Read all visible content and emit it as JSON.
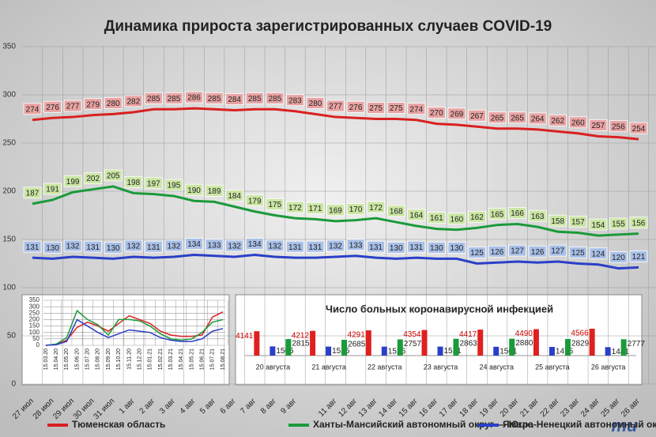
{
  "chart_data": [
    {
      "type": "line",
      "title": "Динамика прироста зарегистрированных случаев COVID-19",
      "categories": [
        "27 июл",
        "28 июл",
        "29 июл",
        "30 июл",
        "31 июл",
        "1 авг",
        "2 авг",
        "3 авг",
        "4 авг",
        "5 авг",
        "6 авг",
        "7 авг",
        "8 авг",
        "9 авг",
        null,
        "11 авг",
        "12 авг",
        "13 авг",
        "14 авг",
        "15 авг",
        "16 авг",
        "17 авг",
        "18 авг",
        "19 авг",
        "20 авг",
        "21 авг",
        "22 авг",
        "23 авг",
        "24 авг",
        "25 авг",
        "26 авг"
      ],
      "series": [
        {
          "name": "Тюменская область",
          "color": "#d92020",
          "label_color": "#e9a3a3",
          "values": [
            274,
            276,
            277,
            279,
            280,
            282,
            285,
            285,
            286,
            285,
            284,
            285,
            285,
            283,
            280,
            277,
            276,
            275,
            275,
            274,
            270,
            269,
            267,
            265,
            265,
            264,
            262,
            260,
            257,
            256,
            254
          ]
        },
        {
          "name": "Ханты-Мансийский автономный округ — Югра",
          "color": "#1a9a3a",
          "label_color": "#cbe6a4",
          "values": [
            187,
            191,
            199,
            202,
            205,
            198,
            197,
            195,
            190,
            189,
            184,
            179,
            175,
            172,
            171,
            169,
            170,
            172,
            168,
            164,
            161,
            160,
            162,
            165,
            166,
            163,
            158,
            157,
            154,
            155,
            156
          ]
        },
        {
          "name": "Ямало-Ненецкий автономный округ",
          "color": "#2a3fc8",
          "label_color": "#a9c0e8",
          "values": [
            131,
            130,
            132,
            131,
            130,
            132,
            131,
            132,
            134,
            133,
            132,
            134,
            132,
            131,
            131,
            132,
            133,
            131,
            130,
            131,
            130,
            130,
            125,
            126,
            127,
            126,
            127,
            125,
            124,
            120,
            121
          ]
        }
      ],
      "ylim": [
        0,
        350
      ],
      "yticks": [
        0,
        50,
        100,
        150,
        200,
        250,
        300,
        350
      ],
      "grid": true,
      "legend": "bottom"
    },
    {
      "type": "line",
      "categories": [
        "15.03.20",
        "15.04.20",
        "15.05.20",
        "15.06.20",
        "15.07.20",
        "15.08.20",
        "15.09.20",
        "15.10.20",
        "15.11.20",
        "15.12.20",
        "15.01.21",
        "15.02.21",
        "15.03.21",
        "15.04.21",
        "15.05.21",
        "15.06.21",
        "15.07.21",
        "15.08.21"
      ],
      "series": [
        {
          "color": "#d92020",
          "values": [
            0,
            5,
            40,
            140,
            180,
            150,
            110,
            170,
            230,
            200,
            170,
            110,
            80,
            70,
            70,
            80,
            220,
            260
          ]
        },
        {
          "color": "#1a9a3a",
          "values": [
            0,
            10,
            60,
            270,
            200,
            160,
            80,
            200,
            200,
            190,
            150,
            90,
            50,
            40,
            50,
            100,
            180,
            200
          ]
        },
        {
          "color": "#2a3fc8",
          "values": [
            0,
            5,
            30,
            200,
            150,
            100,
            60,
            90,
            120,
            110,
            100,
            60,
            40,
            30,
            30,
            50,
            110,
            130
          ]
        }
      ],
      "ylim": [
        0,
        350
      ],
      "yticks": [
        0,
        50,
        100,
        150,
        200,
        250,
        300,
        350
      ],
      "grid": true
    },
    {
      "type": "bar",
      "title": "Число больных коронавирусной инфекцией",
      "categories": [
        "20 августа",
        "21 августа",
        "22 августа",
        "23 августа",
        "24 августа",
        "25 августа",
        "26 августа"
      ],
      "series": [
        {
          "color": "#e02020",
          "values": [
            4141,
            4212,
            4291,
            4354,
            4417,
            4490,
            4566
          ]
        },
        {
          "color": "#2a3fc8",
          "values": [
            1565,
            1535,
            1526,
            1531,
            1501,
            1475,
            1441
          ]
        },
        {
          "color": "#1a9a3a",
          "values": [
            2815,
            2685,
            2757,
            2863,
            2880,
            2829,
            2777
          ]
        }
      ]
    }
  ],
  "logo": "mu"
}
